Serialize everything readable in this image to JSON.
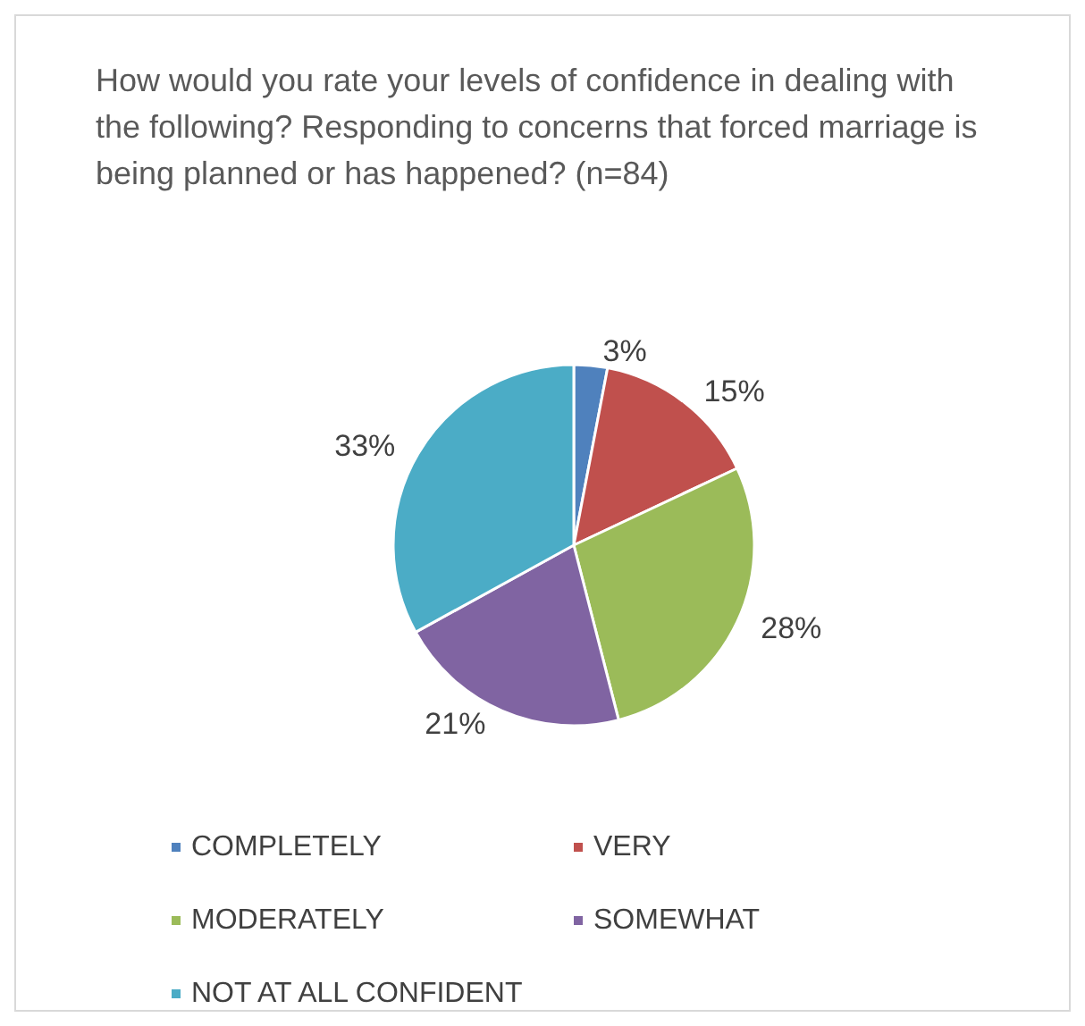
{
  "chart_data": {
    "type": "pie",
    "title": "How would you rate your levels of confidence in dealing with the following? Responding to concerns that forced marriage is being planned or has happened? (n=84)",
    "categories": [
      "COMPLETELY",
      "VERY",
      "MODERATELY",
      "SOMEWHAT",
      "NOT AT ALL CONFIDENT"
    ],
    "values": [
      3,
      15,
      28,
      21,
      33
    ],
    "value_labels": [
      "3%",
      "15%",
      "28%",
      "21%",
      "33%"
    ],
    "colors": [
      "#4f81bd",
      "#c0504d",
      "#9bbb59",
      "#8064a2",
      "#4bacc6"
    ],
    "legend": "bottom"
  }
}
